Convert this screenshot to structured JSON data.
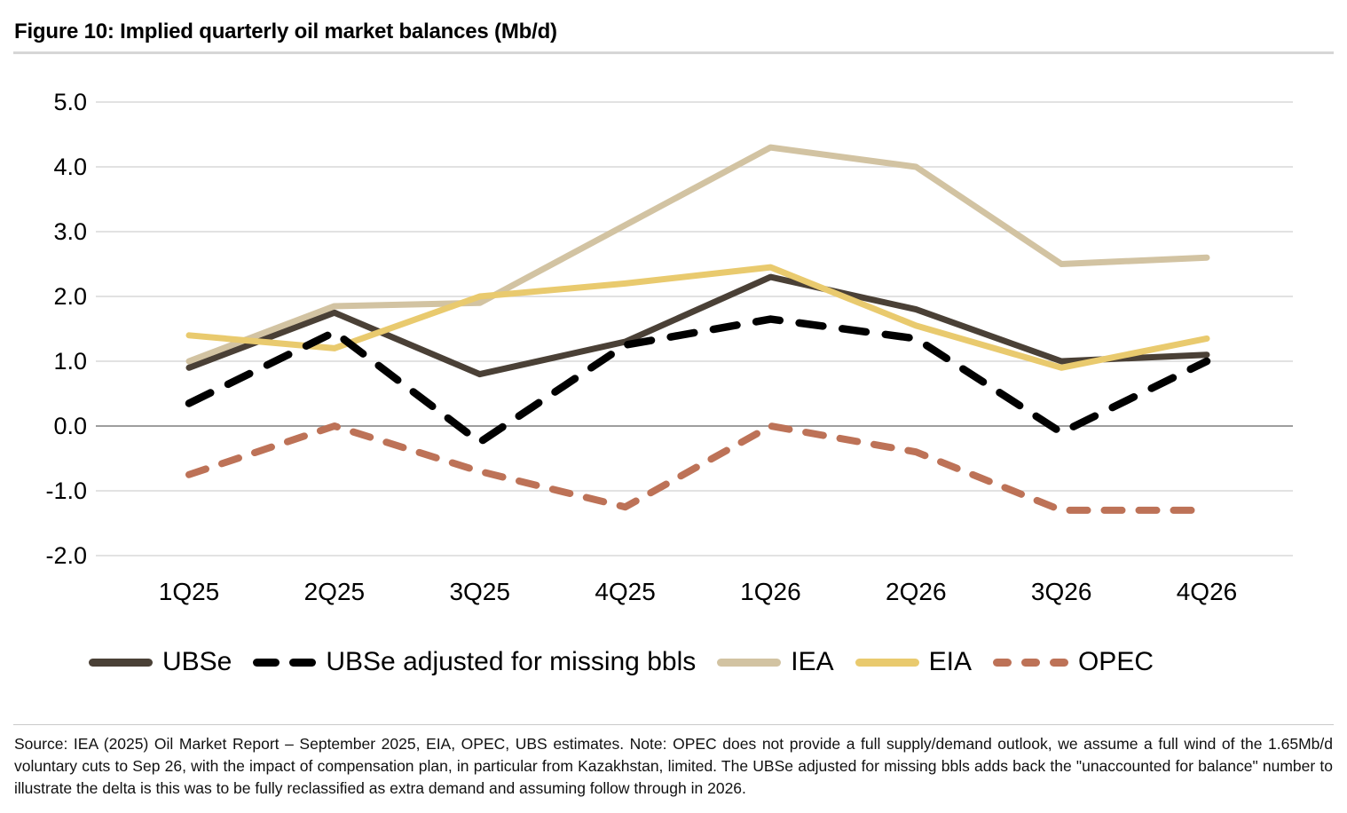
{
  "title": "Figure 10: Implied quarterly oil market balances (Mb/d)",
  "chart_data": {
    "type": "line",
    "title": "Figure 10: Implied quarterly oil market balances (Mb/d)",
    "xlabel": "",
    "ylabel": "Mb/d",
    "categories": [
      "1Q25",
      "2Q25",
      "3Q25",
      "4Q25",
      "1Q26",
      "2Q26",
      "3Q26",
      "4Q26"
    ],
    "series": [
      {
        "name": "UBSe",
        "color": "#4a4036",
        "style": "solid",
        "stroke_width": 7,
        "values": [
          0.9,
          1.75,
          0.8,
          1.3,
          2.3,
          1.8,
          1.0,
          1.1
        ]
      },
      {
        "name": "UBSe adjusted for missing bbls",
        "color": "#000000",
        "style": "dashed-long",
        "stroke_width": 8.5,
        "values": [
          0.35,
          1.45,
          -0.25,
          1.25,
          1.65,
          1.35,
          -0.1,
          1.0
        ]
      },
      {
        "name": "IEA",
        "color": "#d2c3a2",
        "style": "solid",
        "stroke_width": 7,
        "values": [
          1.0,
          1.85,
          1.9,
          3.1,
          4.3,
          4.0,
          2.5,
          2.6
        ]
      },
      {
        "name": "EIA",
        "color": "#e9ca6e",
        "style": "solid",
        "stroke_width": 7,
        "values": [
          1.4,
          1.2,
          2.0,
          2.2,
          2.45,
          1.55,
          0.9,
          1.35
        ]
      },
      {
        "name": "OPEC",
        "color": "#bd7257",
        "style": "dashed-short",
        "stroke_width": 8,
        "values": [
          -0.75,
          0.0,
          -0.7,
          -1.25,
          0.0,
          -0.4,
          -1.3,
          -1.3
        ]
      }
    ],
    "y_ticks": [
      5.0,
      4.0,
      3.0,
      2.0,
      1.0,
      0.0,
      -1.0,
      -2.0
    ],
    "ylim": [
      -2.0,
      5.0
    ],
    "grid": true,
    "gridline_color": "#d9d9d9",
    "zero_line_color": "#7f7f7f",
    "legend_position": "bottom"
  },
  "footer": {
    "source_text": "Source: IEA (2025) Oil Market Report – September 2025, EIA, OPEC, UBS estimates. Note: OPEC does not provide a full supply/demand outlook, we assume a full wind of the 1.65Mb/d voluntary cuts to Sep 26, with the impact of compensation plan, in particular from Kazakhstan, limited. The UBSe adjusted for missing bbls adds back the \"unaccounted for balance\" number to illustrate the delta is this was to be fully reclassified as extra demand and assuming follow through in 2026."
  }
}
